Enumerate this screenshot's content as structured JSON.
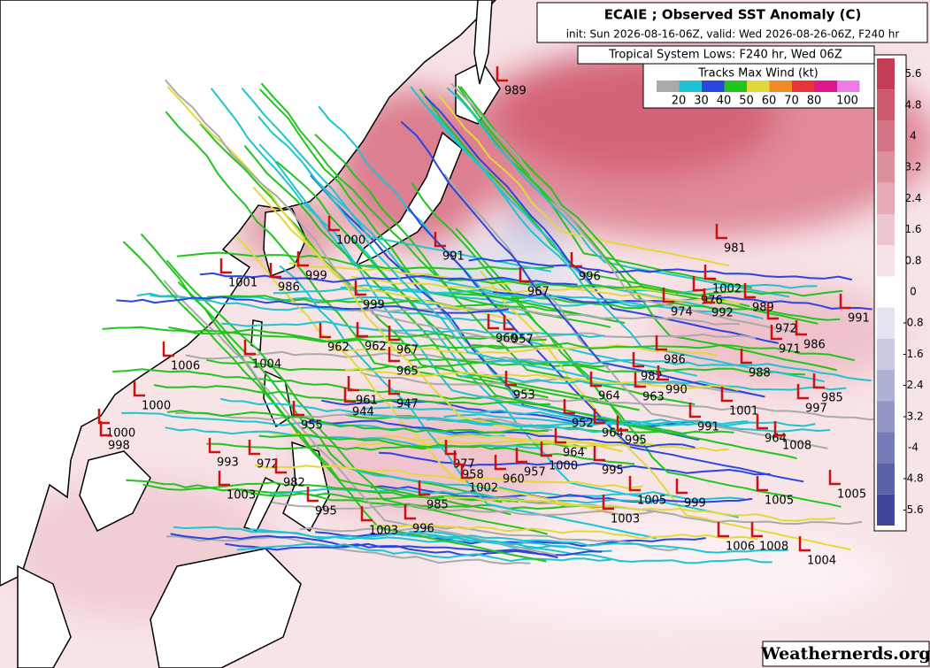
{
  "header": {
    "title": "ECAIE ; Observed SST Anomaly (C)",
    "subtitle": "init: Sun 2026-08-16-06Z, valid: Wed 2026-08-26-06Z, F240 hr",
    "lows_label": "Tropical System Lows: F240 hr, Wed 06Z"
  },
  "wind_legend": {
    "title": "Tracks Max Wind (kt)",
    "labels": [
      20,
      30,
      40,
      50,
      60,
      70,
      80,
      100
    ]
  },
  "colorbar": {
    "ticks": [
      5.6,
      4.8,
      4,
      3.2,
      2.4,
      1.6,
      0.8,
      0,
      -0.8,
      -1.6,
      -2.4,
      -3.2,
      -4,
      -4.8,
      -5.6
    ]
  },
  "pressure_labels": [
    989,
    1000,
    991,
    981,
    996,
    967,
    1002,
    976,
    974,
    992,
    989,
    991,
    1001,
    986,
    999,
    999,
    972,
    971,
    986,
    962,
    962,
    967,
    960,
    957,
    965,
    1006,
    1004,
    986,
    988,
    982,
    990,
    964,
    963,
    961,
    944,
    947,
    1000,
    985,
    997,
    1001,
    955,
    953,
    952,
    964,
    995,
    991,
    964,
    1008,
    1000,
    998,
    993,
    972,
    982,
    1003,
    977,
    958,
    1002,
    960,
    957,
    1000,
    964,
    995,
    1005,
    999,
    1003,
    995,
    985,
    1003,
    996,
    1005,
    1005,
    1008,
    1004,
    1006
  ],
  "watermark": "Weathernerds.org"
}
